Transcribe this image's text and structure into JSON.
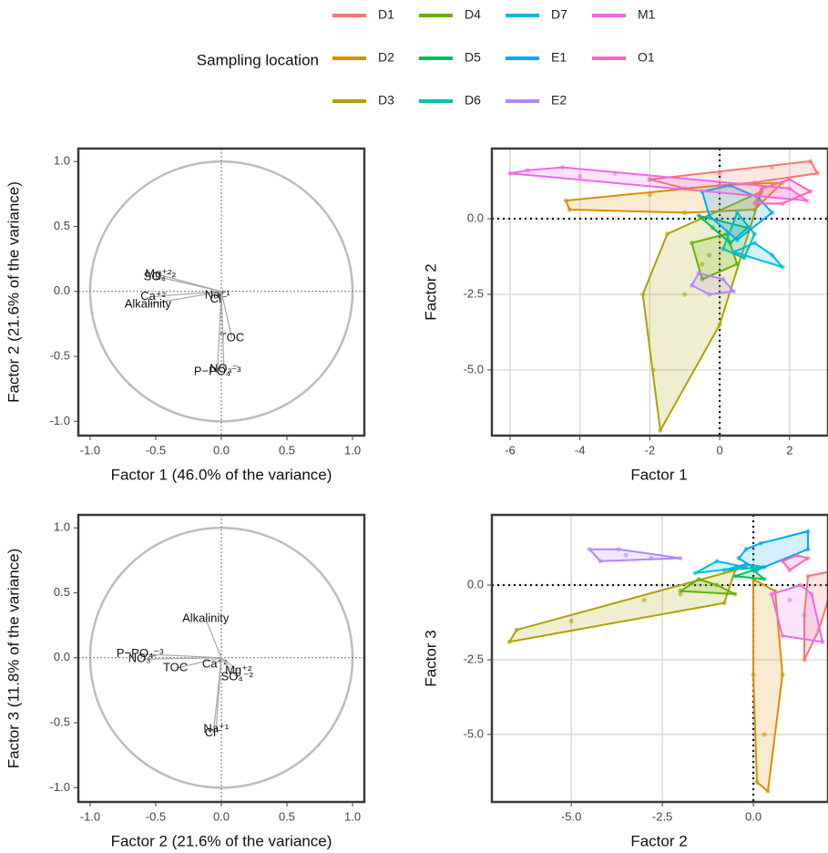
{
  "legend": {
    "title": "Sampling location",
    "entries": [
      "D1",
      "D2",
      "D3",
      "D4",
      "D5",
      "D6",
      "D7",
      "E1",
      "E2",
      "M1",
      "O1"
    ],
    "colors": [
      "#F8766D",
      "#DB8E00",
      "#AEA200",
      "#64B200",
      "#00BD5C",
      "#00C1A7",
      "#00BADE",
      "#00A6FF",
      "#B385FF",
      "#EF67EB",
      "#FF63B6"
    ],
    "position": "top"
  },
  "chart_data": [
    {
      "type": "loading",
      "x_label": "Factor 1 (46.0% of the variance)",
      "y_label": "Factor 2 (21.6% of the variance)",
      "xlim": [
        -1.09,
        1.09
      ],
      "ylim": [
        -1.11,
        1.1
      ],
      "xticks": [
        {
          "value": -1,
          "label": "-1.0"
        },
        {
          "value": -0.5,
          "label": "-0.5"
        },
        {
          "value": 0,
          "label": "0.0"
        },
        {
          "value": 0.5,
          "label": "0.5"
        },
        {
          "value": 1,
          "label": "1.0"
        }
      ],
      "yticks": [
        {
          "value": -1,
          "label": "-1.0"
        },
        {
          "value": -0.5,
          "label": "-0.5"
        },
        {
          "value": 0,
          "label": "0.0"
        },
        {
          "value": 0.5,
          "label": "0.5"
        },
        {
          "value": 1,
          "label": "1.0"
        }
      ],
      "grid": false,
      "variables": [
        "Mg⁺²",
        "SO₄⁻²",
        "Ca⁺²",
        "Alkalinity",
        "Na⁺¹",
        "Cl⁻",
        "TOC",
        "NO₃⁻",
        "P−PO₄⁻³"
      ],
      "x": [
        -0.48,
        -0.47,
        -0.52,
        -0.56,
        -0.03,
        -0.02,
        0.08,
        0.02,
        -0.03
      ],
      "y": [
        0.13,
        0.11,
        -0.04,
        -0.1,
        -0.03,
        -0.06,
        -0.36,
        -0.6,
        -0.62
      ]
    },
    {
      "type": "scatter",
      "x_label": "Factor 1",
      "y_label": "Factor 2",
      "xlim": [
        -6.52,
        3.1
      ],
      "ylim": [
        -7.17,
        2.32
      ],
      "xticks": [
        -6,
        -4,
        -2,
        0,
        2
      ],
      "yticks": [
        {
          "value": -5,
          "label": "-5.0"
        },
        {
          "value": -2.5,
          "label": "-2.5"
        },
        {
          "value": 0,
          "label": "0.0"
        }
      ],
      "grid": true,
      "series": [
        {
          "x": [
            -2,
            0,
            1.5,
            2.6,
            2.8,
            1,
            -1
          ],
          "y": [
            1.3,
            1.5,
            1.7,
            1.9,
            1.5,
            1.2,
            1.0
          ]
        },
        {
          "x": [
            -4.4,
            -4.3,
            -2,
            0,
            1.8,
            1.0,
            -1
          ],
          "y": [
            0.6,
            0.3,
            0.8,
            1.1,
            1.2,
            0.3,
            0.2
          ]
        },
        {
          "x": [
            -1.7,
            -1.9,
            -2.2,
            -1.5,
            1.2,
            0,
            -1,
            -0.5
          ],
          "y": [
            -7.0,
            -5,
            -2.5,
            -0.5,
            0.9,
            -3.5,
            -2.5,
            -1.5
          ]
        },
        {
          "x": [
            -0.8,
            -0.3,
            0.2,
            -0.5,
            0.5
          ],
          "y": [
            -0.8,
            -1.2,
            -0.5,
            -2,
            -1.5
          ]
        },
        {
          "x": [
            -0.2,
            0.3,
            0.8,
            -0.6
          ],
          "y": [
            -0.3,
            -0.8,
            -0.3,
            0.1
          ]
        },
        {
          "x": [
            0.5,
            1,
            0.1,
            0.7
          ],
          "y": [
            0.2,
            -0.5,
            -1,
            -1.3
          ]
        },
        {
          "x": [
            1.5,
            1.8,
            1.0,
            0.4
          ],
          "y": [
            -1.2,
            -1.6,
            -0.8,
            -1.1
          ]
        },
        {
          "x": [
            -0.5,
            0.3,
            1.1,
            1.5,
            0.5,
            -0.3
          ],
          "y": [
            0.9,
            1.1,
            0.7,
            0.2,
            -0.7,
            0.1
          ]
        },
        {
          "x": [
            -0.8,
            -0.3,
            0.1,
            -0.6,
            0.4
          ],
          "y": [
            -2.2,
            -2.5,
            -2.0,
            -1.8,
            -2.4
          ]
        },
        {
          "x": [
            -6.0,
            -5.5,
            -4,
            -2,
            0,
            2,
            2.5,
            -4.5,
            -3
          ],
          "y": [
            1.5,
            1.6,
            1.4,
            1.3,
            1.1,
            1.0,
            0.6,
            1.7,
            1.5
          ]
        },
        {
          "x": [
            1.2,
            2.0,
            2.6,
            1.8,
            1.0
          ],
          "y": [
            1.0,
            1.3,
            0.9,
            0.5,
            0.5
          ]
        }
      ]
    },
    {
      "type": "loading",
      "x_label": "Factor 2 (21.6% of the variance)",
      "y_label": "Factor 3 (11.8% of the variance)",
      "xlim": [
        -1.09,
        1.09
      ],
      "ylim": [
        -1.11,
        1.1
      ],
      "xticks": [
        {
          "value": -1,
          "label": "-1.0"
        },
        {
          "value": -0.5,
          "label": "-0.5"
        },
        {
          "value": 0,
          "label": "0.0"
        },
        {
          "value": 0.5,
          "label": "0.5"
        },
        {
          "value": 1,
          "label": "1.0"
        }
      ],
      "yticks": [
        {
          "value": -1,
          "label": "-1.0"
        },
        {
          "value": -0.5,
          "label": "-0.5"
        },
        {
          "value": 0,
          "label": "0.0"
        },
        {
          "value": 0.5,
          "label": "0.5"
        },
        {
          "value": 1,
          "label": "1.0"
        }
      ],
      "grid": false,
      "variables": [
        "Alkalinity",
        "P−PO₄⁻³",
        "NO₃⁻",
        "TOC",
        "Ca⁺²",
        "Mg⁺²",
        "SO₄⁻²",
        "Na⁺¹",
        "Cl⁻"
      ],
      "x": [
        -0.12,
        -0.62,
        -0.6,
        -0.35,
        -0.05,
        0.13,
        0.12,
        -0.04,
        -0.06
      ],
      "y": [
        0.3,
        0.03,
        -0.01,
        -0.08,
        -0.05,
        -0.1,
        -0.15,
        -0.55,
        -0.58
      ]
    },
    {
      "type": "scatter",
      "x_label": "Factor 2",
      "y_label": "Factor 3",
      "xlim": [
        -7.18,
        2.05
      ],
      "ylim": [
        -7.26,
        2.35
      ],
      "xticks": [
        {
          "value": -5,
          "label": "-5.0"
        },
        {
          "value": -2.5,
          "label": "-2.5"
        },
        {
          "value": 0,
          "label": "0.0"
        }
      ],
      "yticks": [
        {
          "value": -5,
          "label": "-5.0"
        },
        {
          "value": -2.5,
          "label": "-2.5"
        },
        {
          "value": 0,
          "label": "0.0"
        }
      ],
      "grid": true,
      "series": [
        {
          "x": [
            1.5,
            2.3,
            1.4,
            1.4,
            1.8
          ],
          "y": [
            0.3,
            0.5,
            -1,
            -2.5,
            -1.5
          ]
        },
        {
          "x": [
            0,
            0,
            0.1,
            0.4,
            0.8,
            0.6,
            0.3
          ],
          "y": [
            0.2,
            -3,
            -6.6,
            -6.9,
            -3,
            -0.2,
            -5
          ]
        },
        {
          "x": [
            -6.7,
            -6.5,
            -3,
            -0.5,
            -0.8,
            -2,
            -5
          ],
          "y": [
            -1.9,
            -1.5,
            -0.5,
            0.5,
            -0.6,
            -0.3,
            -1.2
          ]
        },
        {
          "x": [
            -1.5,
            -1,
            -0.5,
            -2
          ],
          "y": [
            0.2,
            0,
            -0.3,
            -0.2
          ]
        },
        {
          "x": [
            -0.5,
            0,
            0.3
          ],
          "y": [
            0.3,
            0.5,
            0.2
          ]
        },
        {
          "x": [
            -0.8,
            -0.2,
            0.3
          ],
          "y": [
            0.5,
            0.7,
            0.6
          ]
        },
        {
          "x": [
            -1.6,
            -1,
            -0.2
          ],
          "y": [
            0.4,
            0.8,
            0.6
          ]
        },
        {
          "x": [
            -0.4,
            0.2,
            1.5,
            1.5,
            0.1,
            -0.2
          ],
          "y": [
            0.9,
            1.4,
            1.8,
            1.2,
            0.5,
            1.2
          ]
        },
        {
          "x": [
            -4.5,
            -3.5,
            -2.8,
            -3.7,
            -2,
            -4.2
          ],
          "y": [
            1.2,
            1.0,
            0.9,
            1.2,
            0.9,
            0.8
          ]
        },
        {
          "x": [
            0.5,
            0.8,
            1.9,
            1.6,
            1.0,
            1.3
          ],
          "y": [
            -0.3,
            -1.7,
            -1.9,
            -0.3,
            -0.5,
            0
          ]
        },
        {
          "x": [
            0.8,
            1.2,
            1.0,
            1.5
          ],
          "y": [
            0.8,
            1.0,
            0.5,
            0.9
          ]
        }
      ]
    }
  ]
}
